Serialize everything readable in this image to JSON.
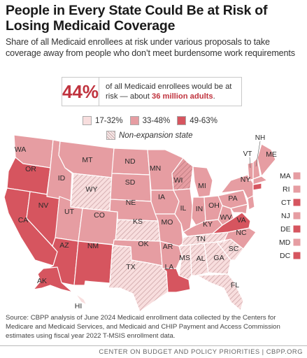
{
  "title": "People in Every State Could Be at Risk of Losing Medicaid Coverage",
  "subtitle": "Share of all Medicaid enrollees at risk under various proposals to take coverage away from people who don’t meet burdensome work requirements",
  "callout": {
    "percent": "44%",
    "text_before": "of all Medicaid enrollees would be at risk — about ",
    "text_highlight": "36 million adults",
    "text_after": "."
  },
  "legend": {
    "bins": [
      {
        "label": "17-32%",
        "color": "#f8dede"
      },
      {
        "label": "33-48%",
        "color": "#e69da2"
      },
      {
        "label": "49-63%",
        "color": "#d6555f"
      }
    ],
    "hatch_label": "Non-expansion state"
  },
  "colors": {
    "low": "#f8dede",
    "mid": "#e69da2",
    "high": "#d6555f",
    "accent": "#c0333e",
    "border": "#ffffff"
  },
  "states": {
    "WA": "WA",
    "OR": "OR",
    "CA": "CA",
    "NV": "NV",
    "ID": "ID",
    "MT": "MT",
    "WY": "WY",
    "UT": "UT",
    "AZ": "AZ",
    "CO": "CO",
    "NM": "NM",
    "ND": "ND",
    "SD": "SD",
    "NE": "NE",
    "KS": "KS",
    "OK": "OK",
    "TX": "TX",
    "MN": "MN",
    "IA": "IA",
    "MO": "MO",
    "AR": "AR",
    "LA": "LA",
    "WI": "WI",
    "IL": "IL",
    "MS": "MS",
    "MI": "MI",
    "IN": "IN",
    "KY": "KY",
    "TN": "TN",
    "AL": "AL",
    "OH": "OH",
    "GA": "GA",
    "FL": "FL",
    "SC": "SC",
    "NC": "NC",
    "VA": "VA",
    "WV": "WV",
    "PA": "PA",
    "NY": "NY",
    "VT": "VT",
    "NH": "NH",
    "ME": "ME",
    "AK": "AK",
    "HI": "HI"
  },
  "small_states": [
    "MA",
    "RI",
    "CT",
    "NJ",
    "DE",
    "MD",
    "DC"
  ],
  "source": "Source: CBPP analysis of June 2024 Medicaid enrollment data collected by the Centers for Medicare and Medicaid Services, and Medicaid and CHIP Payment and Access Commission estimates using fiscal year 2022 T-MSIS enrollment data.",
  "footer": "CENTER ON BUDGET AND POLICY PRIORITIES | CBPP.ORG"
}
